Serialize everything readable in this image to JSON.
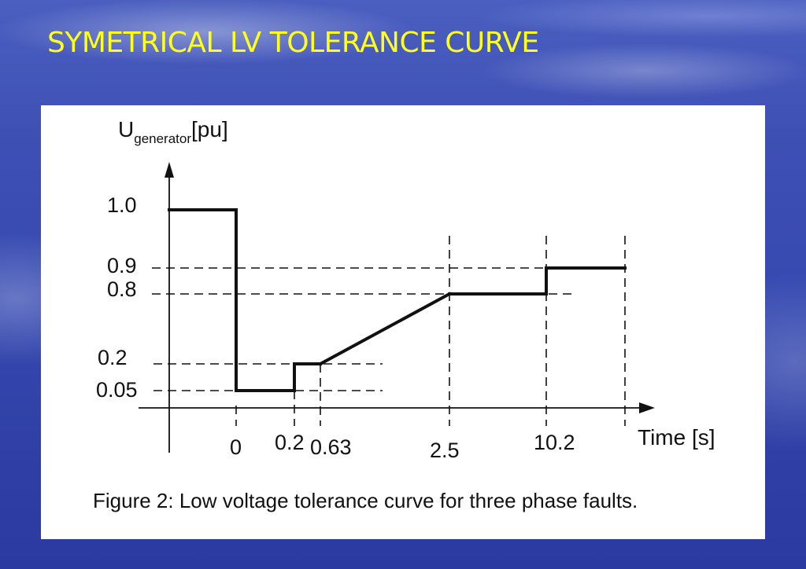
{
  "slide": {
    "title": "SYMETRICAL LV TOLERANCE CURVE"
  },
  "chart_data": {
    "type": "line",
    "title": "",
    "caption": "Figure 2: Low voltage tolerance curve for three phase faults.",
    "ylabel_main": "U",
    "ylabel_sub": "generator",
    "ylabel_unit": "[pu]",
    "xlabel": "Time [s]",
    "x_scale": "categorical-time (non-uniform)",
    "x_ticks": [
      "0",
      "0.2",
      "0.63",
      "2.5",
      "10.2"
    ],
    "y_ticks": [
      "1.0",
      "0.9",
      "0.8",
      "0.2",
      "0.05"
    ],
    "grid": "dashed reference lines",
    "series": [
      {
        "points": [
          {
            "x": "start",
            "y": 1.0
          },
          {
            "x": 0,
            "y": 1.0
          },
          {
            "x": 0,
            "y": 0.05
          },
          {
            "x": 0.2,
            "y": 0.05
          },
          {
            "x": 0.2,
            "y": 0.2
          },
          {
            "x": 0.63,
            "y": 0.2
          },
          {
            "x": 2.5,
            "y": 0.8
          },
          {
            "x": 10.2,
            "y": 0.8
          },
          {
            "x": 10.2,
            "y": 0.9
          },
          {
            "x": "end",
            "y": 0.9
          }
        ]
      }
    ]
  }
}
